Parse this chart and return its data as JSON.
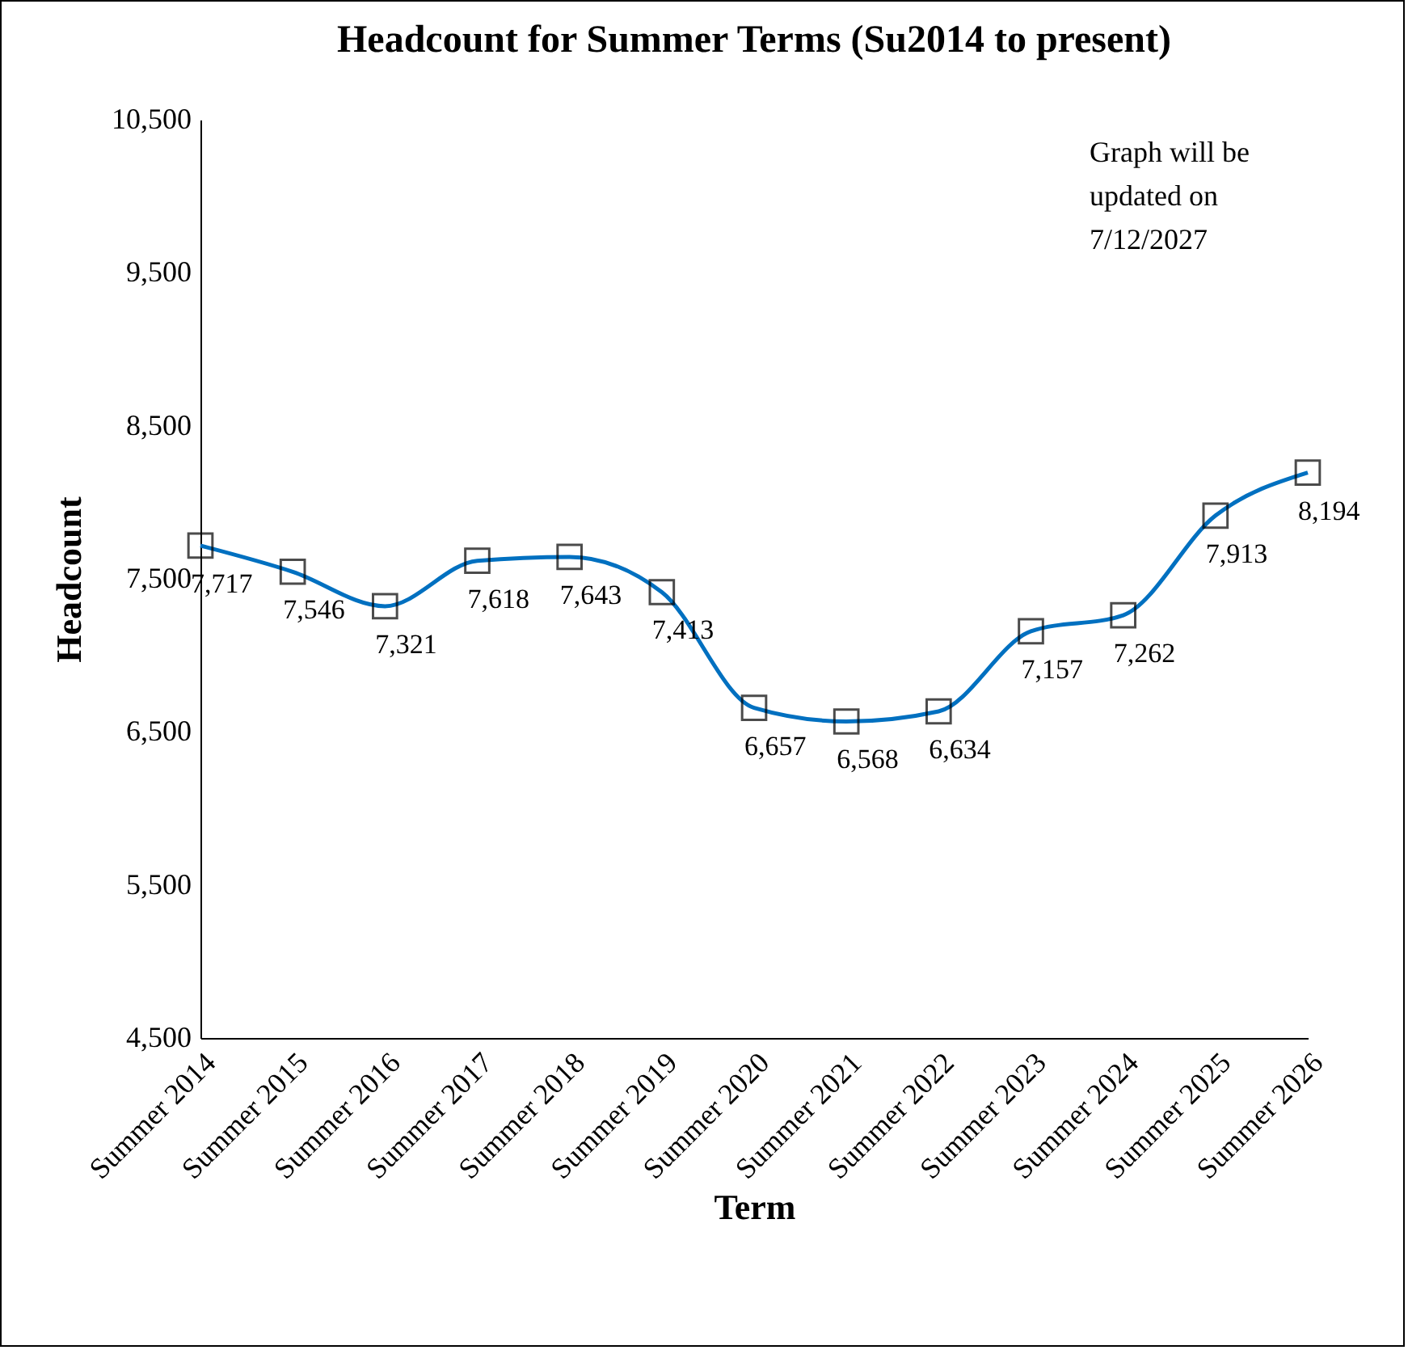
{
  "chart_data": {
    "type": "line",
    "title": "Headcount for Summer Terms (Su2014 to present)",
    "xlabel": "Term",
    "ylabel": "Headcount",
    "categories": [
      "Summer 2014",
      "Summer 2015",
      "Summer 2016",
      "Summer 2017",
      "Summer 2018",
      "Summer 2019",
      "Summer 2020",
      "Summer 2021",
      "Summer 2022",
      "Summer 2023",
      "Summer 2024",
      "Summer 2025",
      "Summer 2026"
    ],
    "values": [
      7717,
      7546,
      7321,
      7618,
      7643,
      7413,
      6657,
      6568,
      6634,
      7157,
      7262,
      7913,
      8194
    ],
    "value_labels": [
      "7,717",
      "7,546",
      "7,321",
      "7,618",
      "7,643",
      "7,413",
      "6,657",
      "6,568",
      "6,634",
      "7,157",
      "7,262",
      "7,913",
      "8,194"
    ],
    "color": "#0070c0",
    "marker": "square",
    "ylim": [
      4500,
      10500
    ],
    "yticks": [
      {
        "value": 4500,
        "label": "4,500"
      },
      {
        "value": 5500,
        "label": "5,500"
      },
      {
        "value": 6500,
        "label": "6,500"
      },
      {
        "value": 7500,
        "label": "7,500"
      },
      {
        "value": 8500,
        "label": "8,500"
      },
      {
        "value": 9500,
        "label": "9,500"
      },
      {
        "value": 10500,
        "label": "10,500"
      }
    ],
    "annotations": [
      "Graph will be updated on 7/12/2027"
    ]
  }
}
